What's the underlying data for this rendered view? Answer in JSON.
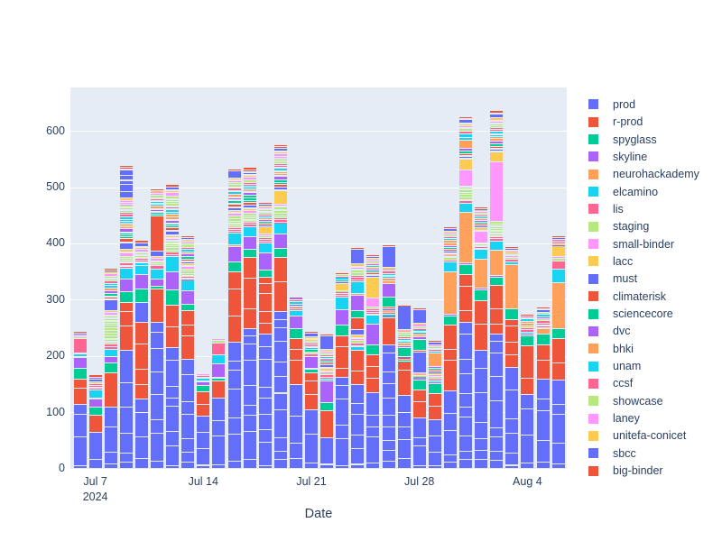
{
  "chart_data": {
    "type": "bar",
    "stacked": true,
    "grid": true,
    "legend_position": "right",
    "xlabel": "Date",
    "ylabel": "",
    "ylim": [
      0,
      678
    ],
    "yticks": [
      0,
      100,
      200,
      300,
      400,
      500,
      600
    ],
    "xticks": [
      {
        "label": "Jul 7",
        "sublabel": "2024",
        "day_index": 1
      },
      {
        "label": "Jul 14",
        "sublabel": "",
        "day_index": 8
      },
      {
        "label": "Jul 21",
        "sublabel": "",
        "day_index": 15
      },
      {
        "label": "Jul 28",
        "sublabel": "",
        "day_index": 22
      },
      {
        "label": "Aug 4",
        "sublabel": "",
        "day_index": 29
      }
    ],
    "x": [
      "2024-07-06",
      "2024-07-07",
      "2024-07-08",
      "2024-07-09",
      "2024-07-10",
      "2024-07-11",
      "2024-07-12",
      "2024-07-13",
      "2024-07-14",
      "2024-07-15",
      "2024-07-16",
      "2024-07-17",
      "2024-07-18",
      "2024-07-19",
      "2024-07-20",
      "2024-07-21",
      "2024-07-22",
      "2024-07-23",
      "2024-07-24",
      "2024-07-25",
      "2024-07-26",
      "2024-07-27",
      "2024-07-28",
      "2024-07-29",
      "2024-07-30",
      "2024-07-31",
      "2024-08-01",
      "2024-08-02",
      "2024-08-03",
      "2024-08-04",
      "2024-08-05",
      "2024-08-06"
    ],
    "series": [
      {
        "name": "prod",
        "color": "#636EFA",
        "values": [
          115,
          65,
          110,
          210,
          124,
          260,
          215,
          195,
          94,
          126,
          225,
          250,
          240,
          280,
          150,
          105,
          55,
          162,
          150,
          135,
          220,
          130,
          90,
          88,
          138,
          260,
          210,
          240,
          180,
          132,
          160,
          158
        ]
      },
      {
        "name": "r-prod",
        "color": "#EF553B",
        "values": [
          45,
          30,
          60,
          85,
          137,
          60,
          76,
          86,
          43,
          30,
          125,
          126,
          100,
          96,
          81,
          65,
          48,
          75,
          60,
          68,
          49,
          60,
          50,
          46,
          118,
          85,
          89,
          86,
          85,
          86,
          60,
          73
        ]
      },
      {
        "name": "spyglass",
        "color": "#00CC96",
        "values": [
          18,
          15,
          18,
          20,
          0,
          5,
          27,
          11,
          11,
          6,
          18,
          14,
          14,
          16,
          19,
          8,
          15,
          19,
          0,
          17,
          2,
          2,
          18,
          18,
          16,
          18,
          19,
          14,
          20,
          19,
          19,
          19
        ]
      },
      {
        "name": "skyline",
        "color": "#AB63FA",
        "values": [
          20,
          15,
          12,
          22,
          0,
          12,
          33,
          24,
          8,
          25,
          27,
          22,
          30,
          25,
          21,
          22,
          38,
          27,
          0,
          38,
          2,
          0,
          2,
          3,
          3,
          3,
          3,
          3,
          0,
          3,
          0,
          0
        ]
      },
      {
        "name": "neurohackademy",
        "color": "#FFA15A",
        "values": [
          0,
          0,
          0,
          0,
          0,
          0,
          0,
          0,
          0,
          0,
          3,
          0,
          0,
          0,
          0,
          0,
          0,
          0,
          0,
          0,
          0,
          0,
          0,
          0,
          75,
          90,
          51,
          46,
          78,
          0,
          11,
          81
        ]
      },
      {
        "name": "elcamino",
        "color": "#19D3F3",
        "values": [
          8,
          15,
          12,
          20,
          0,
          18,
          26,
          19,
          6,
          16,
          21,
          18,
          17,
          19,
          10,
          0,
          3,
          22,
          8,
          16,
          2,
          0,
          2,
          3,
          18,
          16,
          19,
          16,
          5,
          3,
          0,
          24
        ]
      },
      {
        "name": "lis",
        "color": "#FF6692",
        "values": [
          25,
          12,
          10,
          10,
          0,
          6,
          8,
          8,
          4,
          21,
          10,
          8,
          10,
          10,
          6,
          4,
          8,
          9,
          6,
          10,
          2,
          2,
          2,
          3,
          3,
          6,
          5,
          8,
          4,
          8,
          13,
          14
        ]
      },
      {
        "name": "staging",
        "color": "#B6E880",
        "values": [
          4,
          0,
          50,
          10,
          0,
          8,
          20,
          12,
          0,
          4,
          20,
          16,
          3,
          21,
          3,
          3,
          3,
          3,
          4,
          3,
          2,
          2,
          2,
          3,
          6,
          24,
          5,
          27,
          4,
          0,
          4,
          5
        ]
      },
      {
        "name": "small-binder",
        "color": "#FF97FF",
        "values": [
          4,
          0,
          6,
          8,
          0,
          5,
          6,
          6,
          3,
          4,
          6,
          5,
          3,
          4,
          0,
          0,
          3,
          0,
          4,
          16,
          2,
          0,
          2,
          3,
          3,
          30,
          22,
          105,
          4,
          0,
          0,
          3
        ]
      },
      {
        "name": "lacc",
        "color": "#FECB52",
        "values": [
          0,
          3,
          3,
          5,
          0,
          3,
          4,
          3,
          0,
          0,
          4,
          4,
          14,
          24,
          0,
          0,
          7,
          13,
          6,
          37,
          2,
          0,
          2,
          3,
          3,
          19,
          6,
          19,
          4,
          3,
          0,
          19
        ]
      },
      {
        "name": "must",
        "color": "#636EFA",
        "values": [
          2,
          5,
          20,
          12,
          35,
          10,
          8,
          5,
          0,
          0,
          5,
          6,
          3,
          6,
          3,
          0,
          5,
          2,
          10,
          5,
          2,
          2,
          38,
          3,
          4,
          5,
          3,
          5,
          0,
          0,
          0,
          3
        ]
      },
      {
        "name": "climaterisk",
        "color": "#EF553B",
        "values": [
          4,
          0,
          5,
          8,
          0,
          62,
          6,
          4,
          0,
          0,
          8,
          5,
          3,
          5,
          0,
          0,
          3,
          0,
          20,
          3,
          2,
          2,
          2,
          3,
          3,
          4,
          4,
          4,
          0,
          0,
          0,
          0
        ]
      },
      {
        "name": "sciencecore",
        "color": "#00CC96",
        "values": [
          0,
          0,
          6,
          10,
          24,
          8,
          6,
          4,
          0,
          0,
          5,
          12,
          3,
          7,
          0,
          6,
          3,
          4,
          14,
          3,
          19,
          16,
          20,
          3,
          3,
          5,
          3,
          5,
          0,
          0,
          0,
          0
        ]
      },
      {
        "name": "dvc",
        "color": "#AB63FA",
        "values": [
          0,
          3,
          5,
          8,
          25,
          5,
          8,
          5,
          0,
          0,
          6,
          6,
          3,
          8,
          0,
          0,
          3,
          0,
          26,
          4,
          24,
          2,
          6,
          3,
          4,
          5,
          3,
          5,
          0,
          0,
          3,
          0
        ]
      },
      {
        "name": "bhki",
        "color": "#FFA15A",
        "values": [
          0,
          0,
          4,
          8,
          0,
          6,
          10,
          4,
          0,
          0,
          5,
          4,
          3,
          8,
          0,
          0,
          3,
          0,
          3,
          4,
          9,
          6,
          4,
          24,
          9,
          14,
          3,
          8,
          4,
          8,
          0,
          3
        ]
      },
      {
        "name": "unam",
        "color": "#19D3F3",
        "values": [
          0,
          0,
          8,
          12,
          22,
          8,
          8,
          4,
          0,
          0,
          6,
          6,
          3,
          6,
          4,
          3,
          3,
          4,
          22,
          3,
          8,
          8,
          7,
          4,
          3,
          12,
          3,
          10,
          0,
          6,
          5,
          0
        ]
      },
      {
        "name": "ccsf",
        "color": "#FF6692",
        "values": [
          0,
          0,
          5,
          8,
          8,
          5,
          6,
          4,
          0,
          0,
          6,
          6,
          3,
          7,
          6,
          7,
          3,
          2,
          10,
          3,
          5,
          2,
          2,
          3,
          3,
          4,
          3,
          5,
          0,
          4,
          0,
          5
        ]
      },
      {
        "name": "showcase",
        "color": "#B6E880",
        "values": [
          0,
          0,
          8,
          12,
          10,
          6,
          18,
          8,
          0,
          0,
          8,
          6,
          10,
          10,
          0,
          3,
          3,
          3,
          12,
          3,
          2,
          8,
          4,
          4,
          4,
          6,
          3,
          8,
          0,
          0,
          3,
          0
        ]
      },
      {
        "name": "laney",
        "color": "#FF97FF",
        "values": [
          0,
          0,
          5,
          8,
          5,
          5,
          6,
          3,
          0,
          0,
          5,
          4,
          3,
          7,
          0,
          0,
          3,
          0,
          4,
          3,
          2,
          4,
          4,
          3,
          3,
          4,
          3,
          5,
          0,
          0,
          0,
          0
        ]
      },
      {
        "name": "unitefa-conicet",
        "color": "#FECB52",
        "values": [
          0,
          0,
          4,
          6,
          4,
          3,
          4,
          3,
          0,
          0,
          4,
          4,
          3,
          5,
          0,
          8,
          3,
          0,
          6,
          3,
          2,
          2,
          2,
          0,
          3,
          4,
          3,
          5,
          0,
          0,
          0,
          0
        ]
      },
      {
        "name": "sbcc",
        "color": "#636EFA",
        "values": [
          0,
          0,
          3,
          50,
          8,
          0,
          6,
          3,
          0,
          0,
          12,
          6,
          3,
          6,
          3,
          8,
          24,
          0,
          25,
          3,
          37,
          41,
          24,
          6,
          5,
          8,
          3,
          8,
          4,
          0,
          6,
          4
        ]
      },
      {
        "name": "big-binder",
        "color": "#EF553B",
        "values": [
          0,
          5,
          3,
          8,
          4,
          2,
          4,
          3,
          0,
          0,
          5,
          8,
          3,
          6,
          0,
          3,
          3,
          3,
          4,
          3,
          3,
          2,
          3,
          3,
          3,
          4,
          3,
          5,
          4,
          3,
          3,
          4
        ]
      }
    ]
  },
  "colors": {
    "plot_bg": "#E5ECF6",
    "grid": "#FFFFFF",
    "text": "#2a3f5f",
    "paper_bg": "#FFFFFF"
  },
  "axis": {
    "x_title": "Date"
  }
}
